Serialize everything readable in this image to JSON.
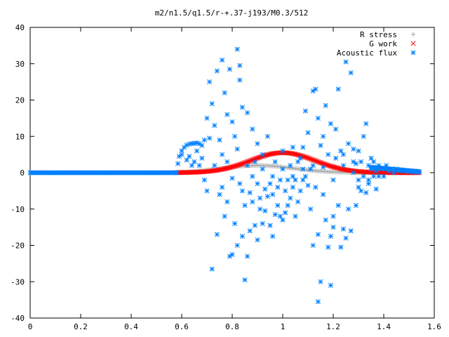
{
  "chart_data": {
    "type": "scatter",
    "title": "m2/n1.5/q1.5/r-+.37-j193/M0.3/512",
    "xlabel": "",
    "ylabel": "",
    "xlim": [
      0,
      1.6
    ],
    "ylim": [
      -40,
      40
    ],
    "xticks": [
      "0",
      "0.2",
      "0.4",
      "0.6",
      "0.8",
      "1",
      "1.2",
      "1.4",
      "1.6"
    ],
    "yticks": [
      "40",
      "30",
      "20",
      "10",
      "0",
      "-10",
      "-20",
      "-30",
      "-40"
    ],
    "grid": false,
    "legend_position": "top-right",
    "series": [
      {
        "name": "R stress",
        "marker": "plus",
        "color": "#a0a0a0",
        "curve": "gaussian",
        "x_start": 0.58,
        "x_end": 1.54,
        "peak_x": 0.9,
        "peak_y": 2.0,
        "width": 0.2,
        "n": 160
      },
      {
        "name": "G work",
        "marker": "cross",
        "color": "#ff0000",
        "curve": "gaussian",
        "x_start": 0.58,
        "x_end": 1.54,
        "peak_x": 1.0,
        "peak_y": 5.5,
        "width": 0.18,
        "n": 200
      },
      {
        "name": "Acoustic flux",
        "marker": "star",
        "color": "#0080ff",
        "baseline": {
          "x_start": 0.0,
          "x_end": 0.58,
          "y": 0,
          "n": 140
        },
        "tail": {
          "x_start": 1.35,
          "x_end": 1.54,
          "y_start": 1.5,
          "y_end": 0.3,
          "n": 40
        },
        "points": [
          [
            0.585,
            2.5
          ],
          [
            0.59,
            4.5
          ],
          [
            0.6,
            6.0
          ],
          [
            0.61,
            7.0
          ],
          [
            0.62,
            7.6
          ],
          [
            0.63,
            7.9
          ],
          [
            0.64,
            8.0
          ],
          [
            0.65,
            8.1
          ],
          [
            0.66,
            8.2
          ],
          [
            0.67,
            8.0
          ],
          [
            0.68,
            7.5
          ],
          [
            0.6,
            5.0
          ],
          [
            0.62,
            3.5
          ],
          [
            0.63,
            4.5
          ],
          [
            0.64,
            2.0
          ],
          [
            0.65,
            3.0
          ],
          [
            0.66,
            6.0
          ],
          [
            0.67,
            2.0
          ],
          [
            0.68,
            4.0
          ],
          [
            0.69,
            9.0
          ],
          [
            0.69,
            -2.0
          ],
          [
            0.7,
            -5.0
          ],
          [
            0.7,
            15.0
          ],
          [
            0.71,
            9.5
          ],
          [
            0.71,
            25.0
          ],
          [
            0.72,
            19.0
          ],
          [
            0.72,
            -26.5
          ],
          [
            0.73,
            13.0
          ],
          [
            0.73,
            2.0
          ],
          [
            0.74,
            -17.0
          ],
          [
            0.74,
            28.0
          ],
          [
            0.75,
            9.0
          ],
          [
            0.75,
            -6.0
          ],
          [
            0.76,
            31.0
          ],
          [
            0.76,
            -4.0
          ],
          [
            0.77,
            -12.0
          ],
          [
            0.77,
            22.0
          ],
          [
            0.78,
            16.0
          ],
          [
            0.78,
            -8.0
          ],
          [
            0.79,
            -23.0
          ],
          [
            0.79,
            28.5
          ],
          [
            0.8,
            14.0
          ],
          [
            0.8,
            -22.5
          ],
          [
            0.81,
            10.0
          ],
          [
            0.81,
            -14.0
          ],
          [
            0.82,
            34.0
          ],
          [
            0.82,
            6.5
          ],
          [
            0.82,
            -20.0
          ],
          [
            0.83,
            29.5
          ],
          [
            0.83,
            25.5
          ],
          [
            0.83,
            -3.0
          ],
          [
            0.84,
            18.0
          ],
          [
            0.84,
            -17.5
          ],
          [
            0.85,
            -29.5
          ],
          [
            0.85,
            -9.0
          ],
          [
            0.86,
            -23.0
          ],
          [
            0.86,
            16.5
          ],
          [
            0.86,
            2.0
          ],
          [
            0.87,
            -16.0
          ],
          [
            0.87,
            -5.5
          ],
          [
            0.88,
            12.0
          ],
          [
            0.88,
            -1.0
          ],
          [
            0.89,
            -14.5
          ],
          [
            0.89,
            3.0
          ],
          [
            0.9,
            -18.5
          ],
          [
            0.9,
            8.0
          ],
          [
            0.91,
            -10.0
          ],
          [
            0.91,
            -7.0
          ],
          [
            0.92,
            -14.0
          ],
          [
            0.92,
            1.0
          ],
          [
            0.93,
            -4.5
          ],
          [
            0.93,
            -10.5
          ],
          [
            0.94,
            10.0
          ],
          [
            0.94,
            -6.5
          ],
          [
            0.95,
            -14.5
          ],
          [
            0.95,
            -3.0
          ],
          [
            0.96,
            -17.5
          ],
          [
            0.96,
            -6.0
          ],
          [
            0.97,
            -11.5
          ],
          [
            0.97,
            3.0
          ],
          [
            0.98,
            -9.0
          ],
          [
            0.98,
            -4.0
          ],
          [
            0.99,
            -12.0
          ],
          [
            0.99,
            -2.0
          ],
          [
            1.0,
            -13.0
          ],
          [
            1.0,
            6.0
          ],
          [
            1.01,
            -11.0
          ],
          [
            1.01,
            -5.0
          ],
          [
            1.02,
            -2.0
          ],
          [
            1.02,
            -9.0
          ],
          [
            1.03,
            2.0
          ],
          [
            1.03,
            -7.0
          ],
          [
            1.04,
            7.0
          ],
          [
            1.04,
            -4.0
          ],
          [
            1.05,
            -12.0
          ],
          [
            1.05,
            -2.0
          ],
          [
            1.06,
            3.0
          ],
          [
            1.06,
            -8.0
          ],
          [
            1.07,
            4.0
          ],
          [
            1.07,
            -5.0
          ],
          [
            1.08,
            7.0
          ],
          [
            1.08,
            -2.0
          ],
          [
            1.09,
            17.0
          ],
          [
            1.09,
            -1.0
          ],
          [
            1.1,
            11.0
          ],
          [
            1.1,
            -3.5
          ],
          [
            1.11,
            1.0
          ],
          [
            1.11,
            -10.0
          ],
          [
            1.12,
            -20.0
          ],
          [
            1.12,
            22.5
          ],
          [
            1.13,
            -4.0
          ],
          [
            1.13,
            23.0
          ],
          [
            1.14,
            -35.5
          ],
          [
            1.14,
            -17.0
          ],
          [
            1.14,
            15.0
          ],
          [
            1.15,
            -30.0
          ],
          [
            1.15,
            7.5
          ],
          [
            1.16,
            10.0
          ],
          [
            1.16,
            -6.0
          ],
          [
            1.17,
            -13.0
          ],
          [
            1.17,
            18.5
          ],
          [
            1.18,
            -20.5
          ],
          [
            1.18,
            5.0
          ],
          [
            1.19,
            -31.0
          ],
          [
            1.19,
            -17.5
          ],
          [
            1.19,
            13.5
          ],
          [
            1.2,
            -15.0
          ],
          [
            1.2,
            -12.0
          ],
          [
            1.21,
            4.0
          ],
          [
            1.21,
            12.0
          ],
          [
            1.22,
            23.0
          ],
          [
            1.22,
            -9.0
          ],
          [
            1.23,
            -20.5
          ],
          [
            1.23,
            6.0
          ],
          [
            1.24,
            -15.5
          ],
          [
            1.24,
            2.0
          ],
          [
            1.25,
            30.5
          ],
          [
            1.25,
            -18.0
          ],
          [
            1.26,
            -10.0
          ],
          [
            1.26,
            8.0
          ],
          [
            1.27,
            27.5
          ],
          [
            1.27,
            -16.0
          ],
          [
            1.28,
            6.5
          ],
          [
            1.28,
            0.0
          ],
          [
            1.29,
            -9.0
          ],
          [
            1.29,
            2.5
          ],
          [
            1.3,
            6.0
          ],
          [
            1.3,
            -4.0
          ],
          [
            1.31,
            -5.0
          ],
          [
            1.31,
            3.0
          ],
          [
            1.32,
            -1.0
          ],
          [
            1.32,
            10.0
          ],
          [
            1.33,
            13.5
          ],
          [
            1.33,
            -5.5
          ],
          [
            1.34,
            2.0
          ],
          [
            1.34,
            -2.0
          ],
          [
            1.35,
            1.0
          ],
          [
            1.35,
            4.0
          ],
          [
            1.36,
            -1.0
          ],
          [
            1.36,
            3.0
          ],
          [
            1.37,
            0.5
          ],
          [
            1.37,
            -4.5
          ],
          [
            1.38,
            2.0
          ],
          [
            1.38,
            -1.0
          ],
          [
            1.39,
            1.0
          ],
          [
            1.4,
            -1.0
          ],
          [
            1.41,
            2.0
          ],
          [
            1.42,
            0.5
          ],
          [
            1.43,
            1.0
          ],
          [
            1.44,
            0.0
          ],
          [
            1.45,
            1.0
          ],
          [
            1.46,
            0.5
          ],
          [
            1.47,
            0.8
          ],
          [
            1.48,
            0.4
          ],
          [
            1.49,
            0.6
          ],
          [
            1.5,
            0.3
          ],
          [
            1.51,
            0.5
          ],
          [
            1.52,
            0.2
          ],
          [
            1.53,
            0.4
          ],
          [
            1.54,
            0.1
          ],
          [
            0.76,
            5.0
          ],
          [
            0.78,
            3.0
          ],
          [
            0.8,
            -1.5
          ],
          [
            0.84,
            -5.0
          ],
          [
            0.88,
            -8.0
          ],
          [
            0.9,
            -3.0
          ],
          [
            0.92,
            5.0
          ],
          [
            0.96,
            -1.0
          ],
          [
            1.0,
            1.0
          ],
          [
            1.04,
            -1.0
          ],
          [
            1.08,
            1.0
          ],
          [
            1.12,
            2.0
          ],
          [
            1.16,
            1.5
          ],
          [
            1.2,
            -2.0
          ],
          [
            1.24,
            5.0
          ],
          [
            1.28,
            3.0
          ],
          [
            1.3,
            -2.0
          ],
          [
            1.34,
            -3.0
          ]
        ]
      }
    ]
  }
}
